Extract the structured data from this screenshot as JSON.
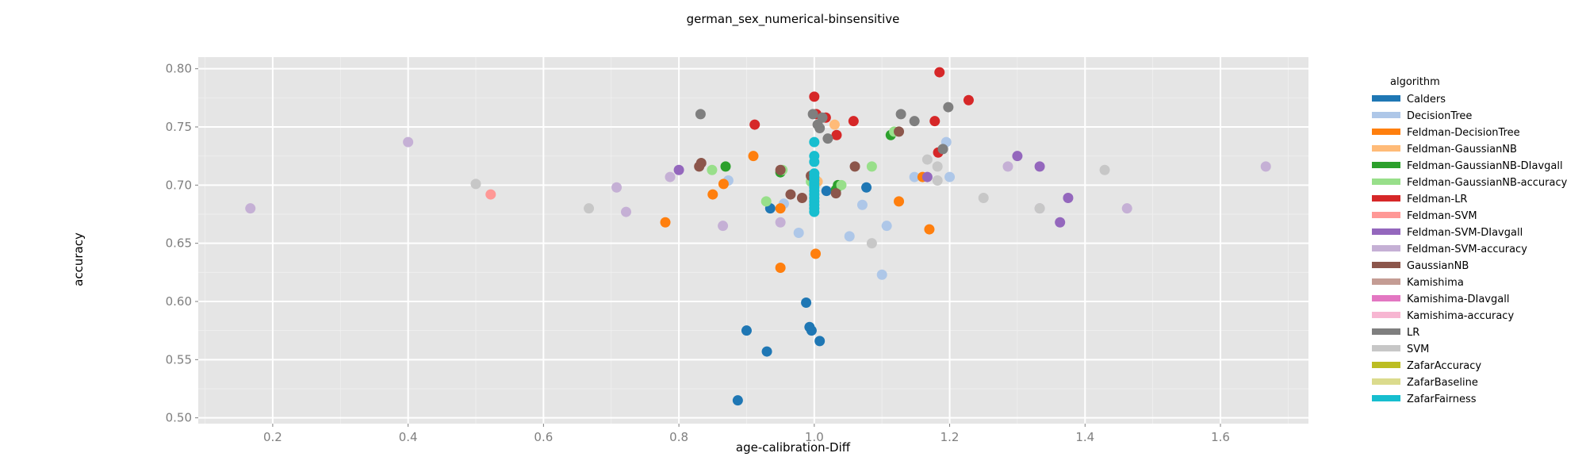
{
  "chart_data": {
    "type": "scatter",
    "title": "german_sex_numerical-binsensitive",
    "xlabel": "age-calibration-Diff",
    "ylabel": "accuracy",
    "xlim": [
      0.09,
      1.73
    ],
    "ylim": [
      0.495,
      0.81
    ],
    "xticks": [
      0.2,
      0.4,
      0.6,
      0.8,
      1.0,
      1.2,
      1.4,
      1.6
    ],
    "xtick_labels": [
      "0.2",
      "0.4",
      "0.6",
      "0.8",
      "1.0",
      "1.2",
      "1.4",
      "1.6"
    ],
    "yticks": [
      0.5,
      0.55,
      0.6,
      0.65,
      0.7,
      0.75,
      0.8
    ],
    "ytick_labels": [
      "0.50",
      "0.55",
      "0.60",
      "0.65",
      "0.70",
      "0.75",
      "0.80"
    ],
    "grid": true,
    "legend_title": "algorithm",
    "legend_position": "right",
    "series": [
      {
        "name": "Calders",
        "color": "#1f77b4",
        "points": [
          [
            0.887,
            0.515
          ],
          [
            0.9,
            0.575
          ],
          [
            0.93,
            0.557
          ],
          [
            0.988,
            0.599
          ],
          [
            0.993,
            0.578
          ],
          [
            0.996,
            0.575
          ],
          [
            1.008,
            0.566
          ],
          [
            0.935,
            0.68
          ],
          [
            1.018,
            0.695
          ],
          [
            1.077,
            0.698
          ]
        ]
      },
      {
        "name": "DecisionTree",
        "color": "#aec7e8",
        "points": [
          [
            0.873,
            0.704
          ],
          [
            0.955,
            0.684
          ],
          [
            0.977,
            0.659
          ],
          [
            1.052,
            0.656
          ],
          [
            1.071,
            0.683
          ],
          [
            1.1,
            0.623
          ],
          [
            1.107,
            0.665
          ],
          [
            1.195,
            0.737
          ],
          [
            1.2,
            0.707
          ],
          [
            1.148,
            0.707
          ]
        ]
      },
      {
        "name": "Feldman-DecisionTree",
        "color": "#ff7f0e",
        "points": [
          [
            0.78,
            0.668
          ],
          [
            0.85,
            0.692
          ],
          [
            0.866,
            0.701
          ],
          [
            0.91,
            0.725
          ],
          [
            0.95,
            0.629
          ],
          [
            0.95,
            0.68
          ],
          [
            1.002,
            0.641
          ],
          [
            1.125,
            0.686
          ],
          [
            1.16,
            0.707
          ],
          [
            1.17,
            0.662
          ]
        ]
      },
      {
        "name": "Feldman-GaussianNB",
        "color": "#ffbb78",
        "points": [
          [
            1.03,
            0.752
          ],
          [
            1.005,
            0.703
          ],
          [
            0.998,
            0.705
          ]
        ]
      },
      {
        "name": "Feldman-GaussianNB-DIavgall",
        "color": "#2ca02c",
        "points": [
          [
            0.869,
            0.716
          ],
          [
            0.95,
            0.711
          ],
          [
            1.032,
            0.696
          ],
          [
            1.035,
            0.7
          ],
          [
            1.113,
            0.743
          ]
        ]
      },
      {
        "name": "Feldman-GaussianNB-accuracy",
        "color": "#98df8a",
        "points": [
          [
            0.849,
            0.713
          ],
          [
            0.929,
            0.686
          ],
          [
            0.953,
            0.713
          ],
          [
            1.04,
            0.7
          ],
          [
            1.085,
            0.716
          ],
          [
            1.118,
            0.746
          ],
          [
            0.995,
            0.703
          ]
        ]
      },
      {
        "name": "Feldman-LR",
        "color": "#d62728",
        "points": [
          [
            0.912,
            0.752
          ],
          [
            1.0,
            0.776
          ],
          [
            1.003,
            0.761
          ],
          [
            1.017,
            0.758
          ],
          [
            1.033,
            0.743
          ],
          [
            1.058,
            0.755
          ],
          [
            1.178,
            0.755
          ],
          [
            1.183,
            0.728
          ],
          [
            1.185,
            0.797
          ],
          [
            1.228,
            0.773
          ]
        ]
      },
      {
        "name": "Feldman-SVM",
        "color": "#ff9896",
        "points": [
          [
            0.522,
            0.692
          ]
        ]
      },
      {
        "name": "Feldman-SVM-DIavgall",
        "color": "#9467bd",
        "points": [
          [
            0.8,
            0.713
          ],
          [
            1.167,
            0.707
          ],
          [
            1.3,
            0.725
          ],
          [
            1.333,
            0.716
          ],
          [
            1.363,
            0.668
          ],
          [
            1.375,
            0.689
          ]
        ]
      },
      {
        "name": "Feldman-SVM-accuracy",
        "color": "#c5b0d5",
        "points": [
          [
            0.167,
            0.68
          ],
          [
            0.4,
            0.737
          ],
          [
            0.708,
            0.698
          ],
          [
            0.722,
            0.677
          ],
          [
            0.787,
            0.707
          ],
          [
            0.865,
            0.665
          ],
          [
            0.95,
            0.668
          ],
          [
            1.286,
            0.716
          ],
          [
            1.333,
            0.68
          ],
          [
            1.462,
            0.68
          ],
          [
            1.667,
            0.716
          ]
        ]
      },
      {
        "name": "GaussianNB",
        "color": "#8c564b",
        "points": [
          [
            0.83,
            0.716
          ],
          [
            0.833,
            0.719
          ],
          [
            0.95,
            0.713
          ],
          [
            0.965,
            0.692
          ],
          [
            0.982,
            0.689
          ],
          [
            0.995,
            0.708
          ],
          [
            1.032,
            0.693
          ],
          [
            1.06,
            0.716
          ],
          [
            1.125,
            0.746
          ]
        ]
      },
      {
        "name": "Kamishima",
        "color": "#c49c94",
        "points": []
      },
      {
        "name": "Kamishima-DIavgall",
        "color": "#e377c2",
        "points": []
      },
      {
        "name": "Kamishima-accuracy",
        "color": "#f7b6d2",
        "points": []
      },
      {
        "name": "LR",
        "color": "#7f7f7f",
        "points": [
          [
            0.832,
            0.761
          ],
          [
            0.998,
            0.761
          ],
          [
            1.005,
            0.752
          ],
          [
            1.008,
            0.749
          ],
          [
            1.012,
            0.758
          ],
          [
            1.02,
            0.74
          ],
          [
            1.128,
            0.761
          ],
          [
            1.148,
            0.755
          ],
          [
            1.19,
            0.731
          ],
          [
            1.198,
            0.767
          ]
        ]
      },
      {
        "name": "SVM",
        "color": "#c7c7c7",
        "points": [
          [
            0.5,
            0.701
          ],
          [
            0.667,
            0.68
          ],
          [
            1.085,
            0.65
          ],
          [
            1.167,
            0.722
          ],
          [
            1.182,
            0.704
          ],
          [
            1.182,
            0.716
          ],
          [
            1.25,
            0.689
          ],
          [
            1.333,
            0.68
          ],
          [
            1.429,
            0.713
          ]
        ]
      },
      {
        "name": "ZafarAccuracy",
        "color": "#bcbd22",
        "points": []
      },
      {
        "name": "ZafarBaseline",
        "color": "#dbdb8d",
        "points": []
      },
      {
        "name": "ZafarFairness",
        "color": "#17becf",
        "points": [
          [
            1.0,
            0.677
          ],
          [
            1.0,
            0.68
          ],
          [
            1.0,
            0.683
          ],
          [
            1.0,
            0.686
          ],
          [
            1.0,
            0.689
          ],
          [
            1.0,
            0.692
          ],
          [
            1.0,
            0.695
          ],
          [
            1.0,
            0.698
          ],
          [
            1.0,
            0.701
          ],
          [
            1.0,
            0.704
          ],
          [
            1.0,
            0.707
          ],
          [
            1.0,
            0.71
          ],
          [
            1.0,
            0.72
          ],
          [
            1.0,
            0.725
          ],
          [
            1.0,
            0.737
          ]
        ]
      }
    ]
  }
}
